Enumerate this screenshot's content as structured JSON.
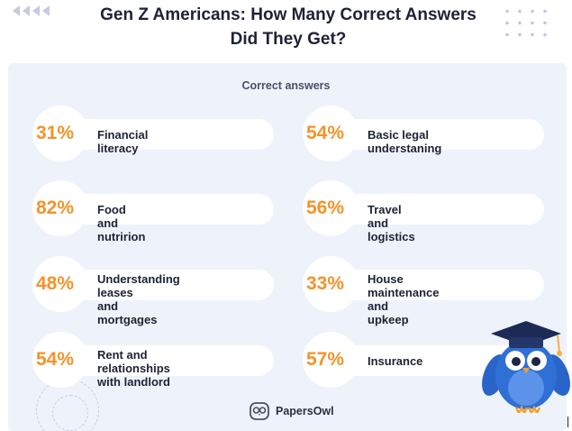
{
  "header": {
    "title_line1": "Gen Z Americans: How Many Correct Answers",
    "title_line2": "Did They Get?"
  },
  "section_label": "Correct answers",
  "colors": {
    "accent": "#f4932a",
    "panel": "#eef3fb",
    "text": "#1e2235",
    "owl": "#2f6fd6"
  },
  "items": [
    {
      "percent": "31%",
      "label_line1": "Financial literacy",
      "label_line2": ""
    },
    {
      "percent": "54%",
      "label_line1": "Basic legal understaning",
      "label_line2": ""
    },
    {
      "percent": "82%",
      "label_line1": "Food and nutririon",
      "label_line2": ""
    },
    {
      "percent": "56%",
      "label_line1": "Travel and logistics",
      "label_line2": ""
    },
    {
      "percent": "48%",
      "label_line1": "Understanding leases",
      "label_line2": "and mortgages"
    },
    {
      "percent": "33%",
      "label_line1": "House maintenance and",
      "label_line2": "upkeep"
    },
    {
      "percent": "54%",
      "label_line1": "Rent and relationships",
      "label_line2": "with landlord"
    },
    {
      "percent": "57%",
      "label_line1": "Insurance",
      "label_line2": ""
    }
  ],
  "brand": {
    "name": "PapersOwl",
    "logo_icon": "owl-logo-icon"
  },
  "mascot": {
    "icon": "graduation-owl-icon"
  }
}
